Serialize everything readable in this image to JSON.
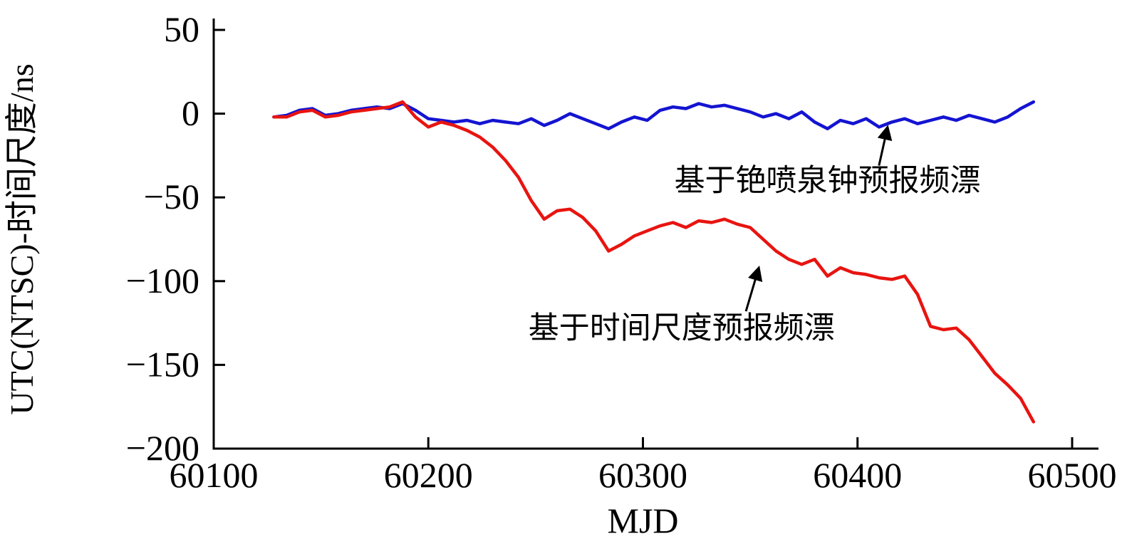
{
  "colors": {
    "background": "#ffffff",
    "axis": "#000000",
    "annotation_text": "#000000",
    "blue_series": "#1414d2",
    "red_series": "#e81410"
  },
  "chart_data": {
    "type": "line",
    "title": "",
    "xlabel": "MJD",
    "ylabel": "UTC(NTSC)-时间尺度/ns",
    "xlim": [
      60100,
      60500
    ],
    "ylim": [
      -200,
      50
    ],
    "grid": false,
    "legend_position": "none (labels drawn as in-plot annotations with arrows)",
    "xticks": {
      "values": [
        60100,
        60200,
        60300,
        60400,
        60500
      ],
      "labels": [
        "60100",
        "60200",
        "60300",
        "60400",
        "60500"
      ]
    },
    "yticks": {
      "values": [
        50,
        0,
        -50,
        -100,
        -150,
        -200
      ],
      "labels": [
        "50",
        "0",
        "−50",
        "−100",
        "−150",
        "−200"
      ]
    },
    "x": [
      60128,
      60134,
      60140,
      60146,
      60152,
      60158,
      60164,
      60170,
      60176,
      60182,
      60188,
      60194,
      60200,
      60206,
      60212,
      60218,
      60224,
      60230,
      60236,
      60242,
      60248,
      60254,
      60260,
      60266,
      60272,
      60278,
      60284,
      60290,
      60296,
      60302,
      60308,
      60314,
      60320,
      60326,
      60332,
      60338,
      60344,
      60350,
      60356,
      60362,
      60368,
      60374,
      60380,
      60386,
      60392,
      60398,
      60404,
      60410,
      60416,
      60422,
      60428,
      60434,
      60440,
      60446,
      60452,
      60458,
      60464,
      60470,
      60476,
      60482
    ],
    "series": [
      {
        "id": "cesium-fountain-prediction",
        "label": "基于铯喷泉钟预报频漂",
        "color": "#1414d2",
        "y": [
          -2,
          -1,
          2,
          3,
          -1,
          0,
          2,
          3,
          4,
          3,
          6,
          2,
          -3,
          -4,
          -5,
          -4,
          -6,
          -4,
          -5,
          -6,
          -3,
          -7,
          -4,
          0,
          -3,
          -6,
          -9,
          -5,
          -2,
          -4,
          2,
          4,
          3,
          6,
          4,
          5,
          3,
          1,
          -2,
          0,
          -3,
          1,
          -5,
          -9,
          -4,
          -6,
          -3,
          -8,
          -5,
          -3,
          -6,
          -4,
          -2,
          -4,
          -1,
          -3,
          -5,
          -2,
          3,
          7
        ]
      },
      {
        "id": "time-scale-prediction",
        "label": "基于时间尺度预报频漂",
        "color": "#e81410",
        "y": [
          -2,
          -2,
          1,
          2,
          -2,
          -1,
          1,
          2,
          3,
          4,
          7,
          -2,
          -8,
          -5,
          -7,
          -10,
          -14,
          -20,
          -28,
          -38,
          -52,
          -63,
          -58,
          -57,
          -62,
          -70,
          -82,
          -78,
          -73,
          -70,
          -67,
          -65,
          -68,
          -64,
          -65,
          -63,
          -66,
          -68,
          -75,
          -82,
          -87,
          -90,
          -87,
          -97,
          -92,
          -95,
          -96,
          -98,
          -99,
          -97,
          -108,
          -127,
          -129,
          -128,
          -135,
          -145,
          -155,
          -162,
          -170,
          -184
        ]
      }
    ],
    "annotations": [
      {
        "series": "cesium-fountain-prediction",
        "text": "基于铯喷泉钟预报频漂",
        "text_x": 60386,
        "text_y": -46,
        "arrow_from": [
          60410,
          -31
        ],
        "arrow_to": [
          60414,
          -8
        ]
      },
      {
        "series": "time-scale-prediction",
        "text": "基于时间尺度预报频漂",
        "text_x": 60318,
        "text_y": -134,
        "arrow_from": [
          60348,
          -118
        ],
        "arrow_to": [
          60354,
          -92
        ]
      }
    ]
  }
}
